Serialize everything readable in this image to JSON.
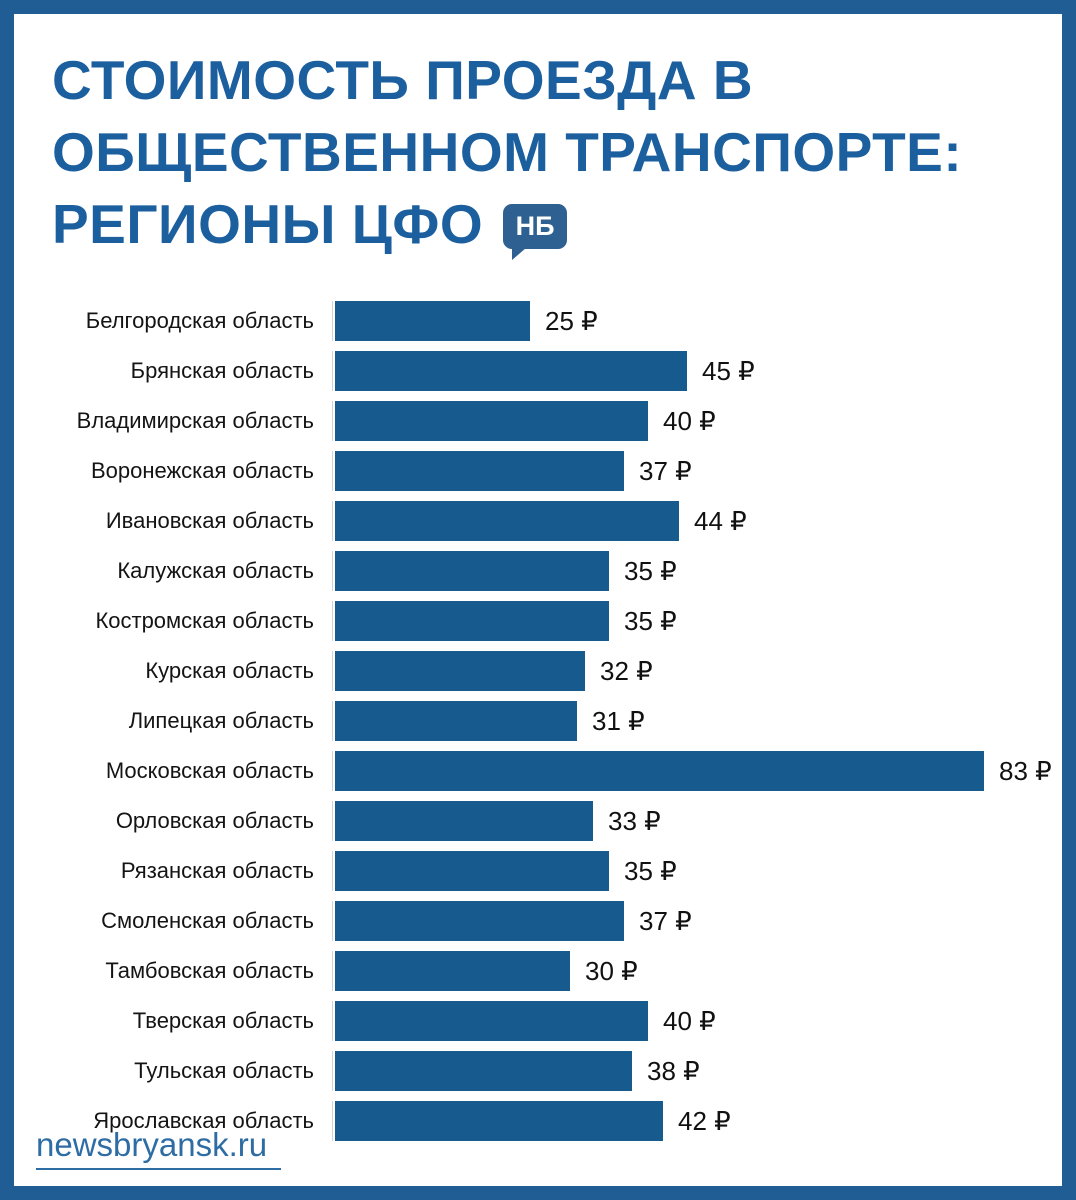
{
  "page": {
    "title_lines": [
      "СТОИМОСТЬ ПРОЕЗДА В",
      "ОБЩЕСТВЕННОМ ТРАНСПОРТЕ:",
      "РЕГИОНЫ ЦФО"
    ],
    "badge_text": "НБ",
    "footer_link": "newsbryansk.ru"
  },
  "colors": {
    "frame": "#1f5d94",
    "title_text": "#1b5f9f",
    "bar": "#175a8d",
    "badge_background": "#2e6092",
    "badge_text": "#ffffff",
    "label_text": "#141414",
    "link": "#2e6da4"
  },
  "chart_data": {
    "type": "bar",
    "orientation": "horizontal",
    "title": "Стоимость проезда в общественном транспорте: регионы ЦФО",
    "categories": [
      "Белгородская область",
      "Брянская область",
      "Владимирская область",
      "Воронежская область",
      "Ивановская область",
      "Калужская область",
      "Костромская область",
      "Курская область",
      "Липецкая область",
      "Московская область",
      "Орловская область",
      "Рязанская область",
      "Смоленская область",
      "Тамбовская область",
      "Тверская область",
      "Тульская область",
      "Ярославская область"
    ],
    "values": [
      25,
      45,
      40,
      37,
      44,
      35,
      35,
      32,
      31,
      83,
      33,
      35,
      37,
      30,
      40,
      38,
      42
    ],
    "unit": "₽",
    "value_label_format": "{value} ₽",
    "xlabel": "",
    "ylabel": "",
    "xlim": [
      0,
      83
    ],
    "grid": false,
    "legend": false,
    "bar_color": "#175a8d",
    "source": "newsbryansk.ru"
  }
}
